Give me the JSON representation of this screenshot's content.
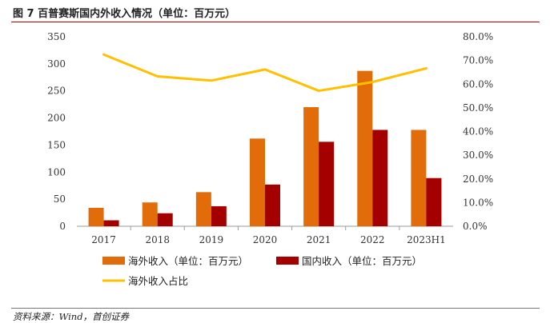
{
  "header": {
    "title": "图 7 百普赛斯国内外收入情况（单位：百万元）"
  },
  "footer": {
    "source": "资料来源：Wind，首创证券"
  },
  "colors": {
    "overseas": "#e36c0a",
    "domestic": "#a50000",
    "ratio": "#ffc000",
    "accent_rule": "#c00000"
  },
  "chart_data": {
    "type": "bar",
    "categories": [
      "2017",
      "2018",
      "2019",
      "2020",
      "2021",
      "2022",
      "2023H1"
    ],
    "series": [
      {
        "name": "海外收入（单位：百万元）",
        "kind": "bar",
        "axis": "left",
        "values": [
          34,
          44,
          63,
          162,
          220,
          287,
          178
        ]
      },
      {
        "name": "国内收入（单位：百万元）",
        "kind": "bar",
        "axis": "left",
        "values": [
          11,
          24,
          37,
          77,
          156,
          178,
          89
        ]
      },
      {
        "name": "海外收入占比",
        "kind": "line",
        "axis": "right",
        "values": [
          72.5,
          63.3,
          61.5,
          66.2,
          57.2,
          60.9,
          66.7
        ]
      }
    ],
    "ylim": [
      0,
      350
    ],
    "yticks": [
      "0",
      "50",
      "100",
      "150",
      "200",
      "250",
      "300",
      "350"
    ],
    "y2lim": [
      0,
      80
    ],
    "y2ticks": [
      "0.0%",
      "10.0%",
      "20.0%",
      "30.0%",
      "40.0%",
      "50.0%",
      "60.0%",
      "70.0%",
      "80.0%"
    ],
    "grid": false,
    "legend_position": "bottom"
  }
}
